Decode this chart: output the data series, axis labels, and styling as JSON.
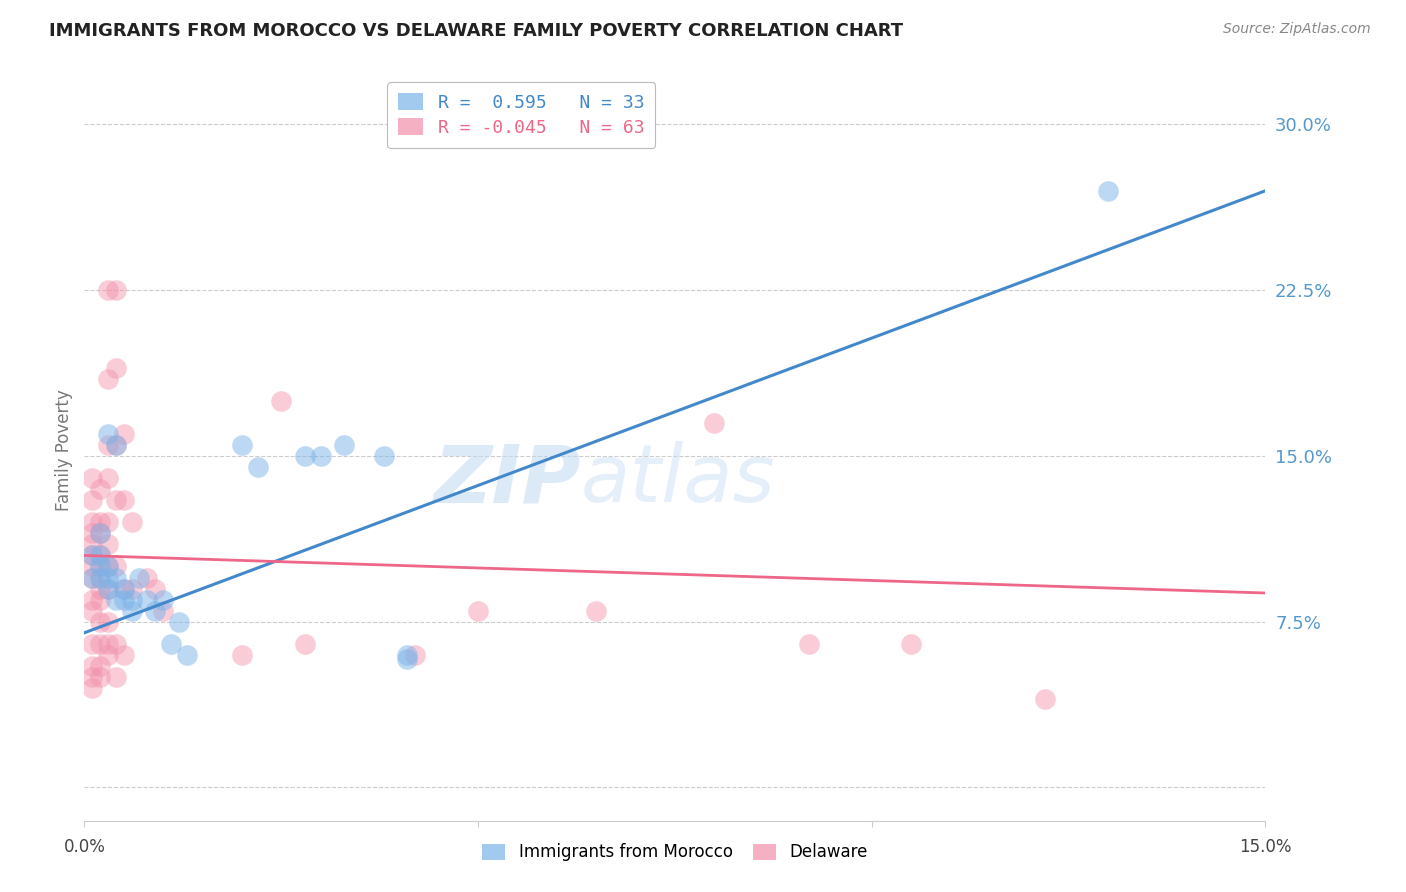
{
  "title": "IMMIGRANTS FROM MOROCCO VS DELAWARE FAMILY POVERTY CORRELATION CHART",
  "source": "Source: ZipAtlas.com",
  "ylabel": "Family Poverty",
  "yticks": [
    0.0,
    0.075,
    0.15,
    0.225,
    0.3
  ],
  "ytick_labels": [
    "",
    "7.5%",
    "15.0%",
    "22.5%",
    "30.0%"
  ],
  "xrange": [
    0.0,
    0.15
  ],
  "yrange": [
    -0.015,
    0.32
  ],
  "legend_r_blue": "R =  0.595",
  "legend_n_blue": "N = 33",
  "legend_r_pink": "R = -0.045",
  "legend_n_pink": "N = 63",
  "legend_label_blue": "Immigrants from Morocco",
  "legend_label_pink": "Delaware",
  "blue_scatter": [
    [
      0.001,
      0.105
    ],
    [
      0.001,
      0.095
    ],
    [
      0.002,
      0.115
    ],
    [
      0.002,
      0.105
    ],
    [
      0.002,
      0.1
    ],
    [
      0.002,
      0.095
    ],
    [
      0.003,
      0.1
    ],
    [
      0.003,
      0.095
    ],
    [
      0.003,
      0.16
    ],
    [
      0.003,
      0.09
    ],
    [
      0.004,
      0.095
    ],
    [
      0.004,
      0.085
    ],
    [
      0.004,
      0.155
    ],
    [
      0.005,
      0.09
    ],
    [
      0.005,
      0.085
    ],
    [
      0.006,
      0.085
    ],
    [
      0.006,
      0.08
    ],
    [
      0.007,
      0.095
    ],
    [
      0.008,
      0.085
    ],
    [
      0.009,
      0.08
    ],
    [
      0.01,
      0.085
    ],
    [
      0.011,
      0.065
    ],
    [
      0.012,
      0.075
    ],
    [
      0.013,
      0.06
    ],
    [
      0.02,
      0.155
    ],
    [
      0.022,
      0.145
    ],
    [
      0.028,
      0.15
    ],
    [
      0.03,
      0.15
    ],
    [
      0.033,
      0.155
    ],
    [
      0.038,
      0.15
    ],
    [
      0.041,
      0.06
    ],
    [
      0.041,
      0.058
    ],
    [
      0.13,
      0.27
    ]
  ],
  "pink_scatter": [
    [
      0.001,
      0.14
    ],
    [
      0.001,
      0.13
    ],
    [
      0.001,
      0.12
    ],
    [
      0.001,
      0.115
    ],
    [
      0.001,
      0.11
    ],
    [
      0.001,
      0.105
    ],
    [
      0.001,
      0.1
    ],
    [
      0.001,
      0.095
    ],
    [
      0.001,
      0.085
    ],
    [
      0.001,
      0.08
    ],
    [
      0.001,
      0.065
    ],
    [
      0.001,
      0.055
    ],
    [
      0.001,
      0.05
    ],
    [
      0.001,
      0.045
    ],
    [
      0.002,
      0.135
    ],
    [
      0.002,
      0.12
    ],
    [
      0.002,
      0.115
    ],
    [
      0.002,
      0.105
    ],
    [
      0.002,
      0.1
    ],
    [
      0.002,
      0.095
    ],
    [
      0.002,
      0.09
    ],
    [
      0.002,
      0.085
    ],
    [
      0.002,
      0.075
    ],
    [
      0.002,
      0.065
    ],
    [
      0.002,
      0.055
    ],
    [
      0.002,
      0.05
    ],
    [
      0.003,
      0.225
    ],
    [
      0.003,
      0.185
    ],
    [
      0.003,
      0.155
    ],
    [
      0.003,
      0.14
    ],
    [
      0.003,
      0.12
    ],
    [
      0.003,
      0.11
    ],
    [
      0.003,
      0.1
    ],
    [
      0.003,
      0.09
    ],
    [
      0.003,
      0.075
    ],
    [
      0.003,
      0.065
    ],
    [
      0.003,
      0.06
    ],
    [
      0.004,
      0.225
    ],
    [
      0.004,
      0.19
    ],
    [
      0.004,
      0.155
    ],
    [
      0.004,
      0.13
    ],
    [
      0.004,
      0.1
    ],
    [
      0.004,
      0.065
    ],
    [
      0.004,
      0.05
    ],
    [
      0.005,
      0.16
    ],
    [
      0.005,
      0.13
    ],
    [
      0.005,
      0.09
    ],
    [
      0.005,
      0.06
    ],
    [
      0.006,
      0.12
    ],
    [
      0.006,
      0.09
    ],
    [
      0.008,
      0.095
    ],
    [
      0.009,
      0.09
    ],
    [
      0.01,
      0.08
    ],
    [
      0.02,
      0.06
    ],
    [
      0.025,
      0.175
    ],
    [
      0.028,
      0.065
    ],
    [
      0.042,
      0.06
    ],
    [
      0.05,
      0.08
    ],
    [
      0.065,
      0.08
    ],
    [
      0.08,
      0.165
    ],
    [
      0.092,
      0.065
    ],
    [
      0.105,
      0.065
    ],
    [
      0.122,
      0.04
    ]
  ],
  "blue_line": {
    "x0": 0.0,
    "y0": 0.07,
    "x1": 0.15,
    "y1": 0.27
  },
  "pink_line": {
    "x0": 0.0,
    "y0": 0.105,
    "x1": 0.15,
    "y1": 0.088
  },
  "watermark_zip": "ZIP",
  "watermark_atlas": "atlas",
  "blue_color": "#7bb3e8",
  "pink_color": "#f28faa",
  "blue_line_color": "#4488cc",
  "pink_line_color": "#ee6688",
  "grid_color": "#cccccc",
  "ytick_color": "#5599cc",
  "background_color": "#ffffff"
}
